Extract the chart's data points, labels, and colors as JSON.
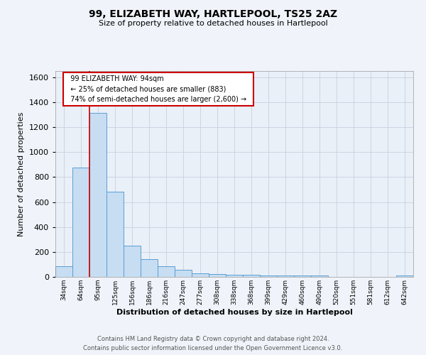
{
  "title": "99, ELIZABETH WAY, HARTLEPOOL, TS25 2AZ",
  "subtitle": "Size of property relative to detached houses in Hartlepool",
  "xlabel": "Distribution of detached houses by size in Hartlepool",
  "ylabel": "Number of detached properties",
  "bar_labels": [
    "34sqm",
    "64sqm",
    "95sqm",
    "125sqm",
    "156sqm",
    "186sqm",
    "216sqm",
    "247sqm",
    "277sqm",
    "308sqm",
    "338sqm",
    "368sqm",
    "399sqm",
    "429sqm",
    "460sqm",
    "490sqm",
    "520sqm",
    "551sqm",
    "581sqm",
    "612sqm",
    "642sqm"
  ],
  "bar_values": [
    88,
    878,
    1317,
    683,
    252,
    143,
    88,
    55,
    30,
    25,
    18,
    15,
    13,
    12,
    10,
    10,
    0,
    0,
    0,
    0,
    10
  ],
  "bar_color": "#c7ddf2",
  "bar_edge_color": "#5a9fd4",
  "ylim": [
    0,
    1650
  ],
  "yticks": [
    0,
    200,
    400,
    600,
    800,
    1000,
    1200,
    1400,
    1600
  ],
  "property_label": "99 ELIZABETH WAY: 94sqm",
  "annotation_line1": "← 25% of detached houses are smaller (883)",
  "annotation_line2": "74% of semi-detached houses are larger (2,600) →",
  "vline_color": "#cc0000",
  "footer_line1": "Contains HM Land Registry data © Crown copyright and database right 2024.",
  "footer_line2": "Contains public sector information licensed under the Open Government Licence v3.0.",
  "background_color": "#f0f4fa",
  "plot_bg_color": "#eaf0f8",
  "grid_color": "#c8d0e0"
}
